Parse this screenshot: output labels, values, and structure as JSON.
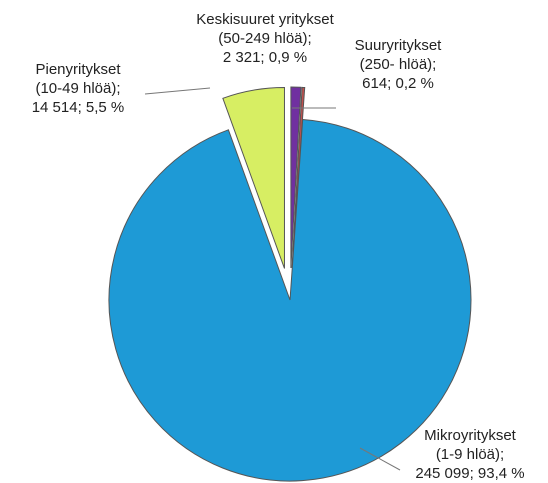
{
  "chart_data": {
    "type": "pie",
    "categories": [
      "Keskisuuret yritykset",
      "Suuryritykset",
      "Mikroyritykset",
      "Pienyritykset"
    ],
    "category_notes": [
      "(50-249 hlöä);",
      "(250- hlöä);",
      "(1-9 hlöä);",
      "(10-49 hlöä);"
    ],
    "values": [
      2321,
      614,
      245099,
      14514
    ],
    "value_labels": [
      "2 321; 0,9 %",
      "614; 0,2 %",
      "245 099; 93,4 %",
      "14 514; 5,5 %"
    ],
    "colors": [
      "#7030a0",
      "#c0504d",
      "#1e9ad6",
      "#d7ee63"
    ],
    "exploded": [
      true,
      true,
      false,
      true
    ]
  }
}
